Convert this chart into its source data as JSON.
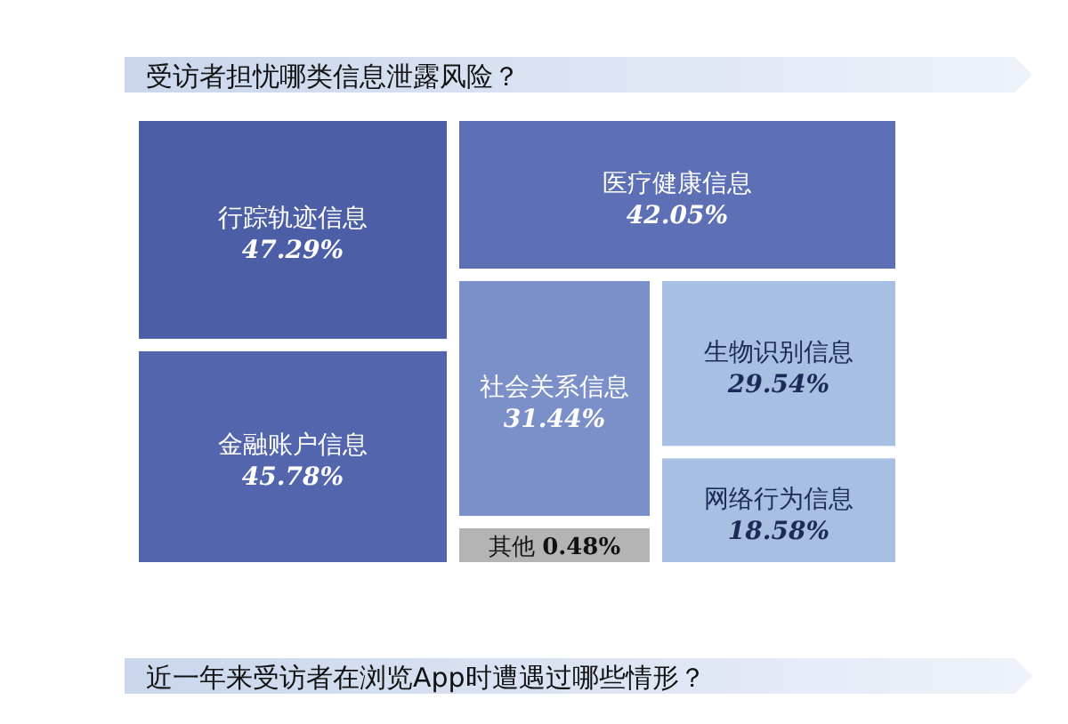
{
  "chart_data": {
    "type": "other",
    "title": "受访者担忧哪类信息泄露风险？",
    "categories": [
      "行踪轨迹信息",
      "金融账户信息",
      "医疗健康信息",
      "社会关系信息",
      "生物识别信息",
      "网络行为信息",
      "其他"
    ],
    "values": [
      47.29,
      45.78,
      42.05,
      31.44,
      29.54,
      18.58,
      0.48
    ],
    "value_labels": [
      "47.29%",
      "45.78%",
      "42.05%",
      "31.44%",
      "29.54%",
      "18.58%",
      "0.48%"
    ],
    "colors": [
      "#4c5ea6",
      "#5365ad",
      "#5d70b5",
      "#7b8fc9",
      "#a6bfe2",
      "#a6bfe2",
      "#b4b4b4"
    ],
    "annotations": [
      "近一年来受访者在浏览App时遭遇过哪些情形？"
    ]
  }
}
